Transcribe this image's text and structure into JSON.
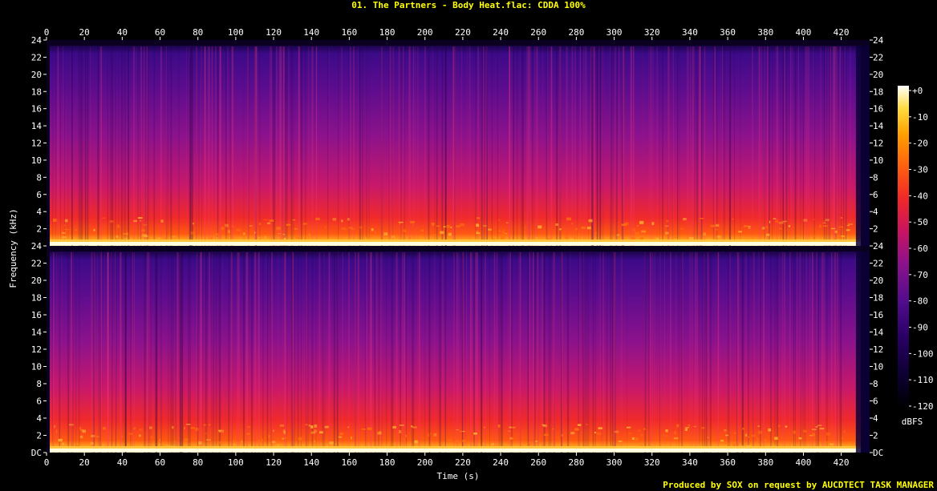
{
  "header": {
    "title": "01. The Partners - Body Heat.flac: CDDA 100%"
  },
  "footer": {
    "credit": "Produced by SOX on request by AUCDTECT TASK MANAGER"
  },
  "chart_data": {
    "type": "heatmap",
    "title": "01. The Partners - Body Heat.flac: CDDA 100%",
    "xlabel": "Time (s)",
    "ylabel": "Frequency (kHz)",
    "xlim": [
      0,
      435
    ],
    "ylim": [
      0,
      24
    ],
    "x_ticks": [
      0,
      20,
      40,
      60,
      80,
      100,
      120,
      140,
      160,
      180,
      200,
      220,
      240,
      260,
      280,
      300,
      320,
      340,
      360,
      380,
      400,
      420
    ],
    "y_ticks": [
      "DC",
      "2",
      "4",
      "6",
      "8",
      "10",
      "12",
      "14",
      "16",
      "18",
      "20",
      "22",
      "24"
    ],
    "channels": [
      "left",
      "right"
    ],
    "colorbar": {
      "label": "dBFS",
      "ticks": [
        "+0",
        "-10",
        "-20",
        "-30",
        "-40",
        "-50",
        "-60",
        "-70",
        "-80",
        "-90",
        "-100",
        "-110",
        "-120"
      ],
      "range": [
        -120,
        0
      ]
    }
  },
  "colors": {
    "title": "#ffff00",
    "credit": "#ffff00",
    "background": "#000000",
    "palette": [
      "#000010",
      "#140050",
      "#3c0a8c",
      "#7a129a",
      "#b8187a",
      "#e8243c",
      "#ff4a10",
      "#ff8a00",
      "#ffc830",
      "#ffffc8"
    ]
  }
}
